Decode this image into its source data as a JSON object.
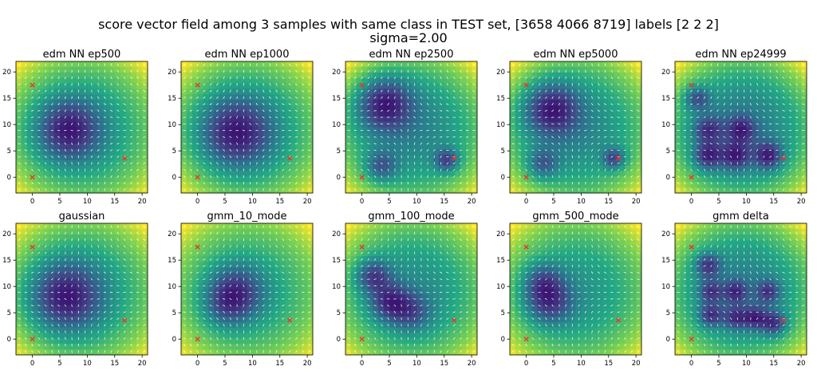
{
  "suptitle": {
    "line1": "score vector field among 3 samples with same class in TEST set, [3658 4066 8719] labels [2 2 2]",
    "line2": "sigma=2.00"
  },
  "colors": {
    "background": "#ffffff",
    "arrow": "#ffffff",
    "sample_marker": "#e8352b",
    "colormap": [
      "#3b0f70",
      "#414487",
      "#2a788e",
      "#22a884",
      "#7ad151",
      "#fde725"
    ]
  },
  "chart_data": {
    "type": "heatmap",
    "subtype": "vector-field",
    "xlim": [
      -3,
      21
    ],
    "ylim": [
      22,
      -3
    ],
    "xticks": [
      0,
      5,
      10,
      15,
      20
    ],
    "yticks": [
      0,
      5,
      10,
      15,
      20
    ],
    "samples": [
      {
        "x": 0,
        "y": 0
      },
      {
        "x": 16.8,
        "y": 3.6
      },
      {
        "x": 0,
        "y": 17.5
      }
    ],
    "sample_marker": "x",
    "panels": [
      {
        "title": "edm NN ep500",
        "show_yticks": true,
        "show_xticks": true,
        "minima": [
          {
            "x": 6.5,
            "y": 9,
            "w": 0.65,
            "s": 4
          }
        ]
      },
      {
        "title": "edm NN ep1000",
        "show_yticks": true,
        "show_xticks": true,
        "minima": [
          {
            "x": 7,
            "y": 8.5,
            "w": 0.65,
            "s": 4.5
          }
        ]
      },
      {
        "title": "edm NN ep2500",
        "show_yticks": true,
        "show_xticks": true,
        "minima": [
          {
            "x": 3.5,
            "y": 2,
            "w": 0.4,
            "s": 2
          },
          {
            "x": 15.5,
            "y": 3.2,
            "w": 0.5,
            "s": 1.5
          },
          {
            "x": 4,
            "y": 14,
            "w": 0.6,
            "s": 3.5
          }
        ]
      },
      {
        "title": "edm NN ep5000",
        "show_yticks": true,
        "show_xticks": true,
        "minima": [
          {
            "x": 3,
            "y": 2.5,
            "w": 0.4,
            "s": 2
          },
          {
            "x": 16,
            "y": 3.5,
            "w": 0.5,
            "s": 1.4
          },
          {
            "x": 4.5,
            "y": 13,
            "w": 0.6,
            "s": 3.5
          }
        ]
      },
      {
        "title": "edm NN ep24999",
        "show_yticks": true,
        "show_xticks": true,
        "minima": [
          {
            "x": 3,
            "y": 4,
            "w": 0.5,
            "s": 1.8
          },
          {
            "x": 8,
            "y": 4,
            "w": 0.45,
            "s": 1.8
          },
          {
            "x": 14,
            "y": 4,
            "w": 0.5,
            "s": 1.8
          },
          {
            "x": 3,
            "y": 9,
            "w": 0.4,
            "s": 1.8
          },
          {
            "x": 9,
            "y": 9,
            "w": 0.4,
            "s": 1.8
          },
          {
            "x": 1,
            "y": 15,
            "w": 0.4,
            "s": 1.6
          }
        ]
      },
      {
        "title": "gaussian",
        "show_yticks": true,
        "show_xticks": true,
        "minima": [
          {
            "x": 6,
            "y": 8,
            "w": 0.7,
            "s": 4.5
          }
        ]
      },
      {
        "title": "gmm_10_mode",
        "show_yticks": true,
        "show_xticks": true,
        "minima": [
          {
            "x": 7,
            "y": 9,
            "w": 0.6,
            "s": 3.5
          },
          {
            "x": 5,
            "y": 6,
            "w": 0.3,
            "s": 3
          }
        ]
      },
      {
        "title": "gmm_100_mode",
        "show_yticks": true,
        "show_xticks": true,
        "minima": [
          {
            "x": 5,
            "y": 7,
            "w": 0.5,
            "s": 2.5
          },
          {
            "x": 2,
            "y": 12,
            "w": 0.5,
            "s": 2.2
          },
          {
            "x": 9,
            "y": 5,
            "w": 0.35,
            "s": 2.5
          }
        ]
      },
      {
        "title": "gmm_500_mode",
        "show_yticks": true,
        "show_xticks": true,
        "minima": [
          {
            "x": 4,
            "y": 7,
            "w": 0.55,
            "s": 3
          },
          {
            "x": 3,
            "y": 11,
            "w": 0.4,
            "s": 2.5
          }
        ]
      },
      {
        "title": "gmm delta",
        "show_yticks": true,
        "show_xticks": true,
        "minima": [
          {
            "x": 3.5,
            "y": 4.5,
            "w": 0.45,
            "s": 1.5
          },
          {
            "x": 8,
            "y": 4,
            "w": 0.4,
            "s": 1.5
          },
          {
            "x": 11.5,
            "y": 4,
            "w": 0.45,
            "s": 1.5
          },
          {
            "x": 15,
            "y": 3,
            "w": 0.5,
            "s": 1.6
          },
          {
            "x": 3.5,
            "y": 9,
            "w": 0.4,
            "s": 1.5
          },
          {
            "x": 8,
            "y": 9,
            "w": 0.4,
            "s": 1.5
          },
          {
            "x": 14,
            "y": 9,
            "w": 0.4,
            "s": 1.5
          },
          {
            "x": 3,
            "y": 14,
            "w": 0.45,
            "s": 1.6
          }
        ]
      }
    ]
  }
}
